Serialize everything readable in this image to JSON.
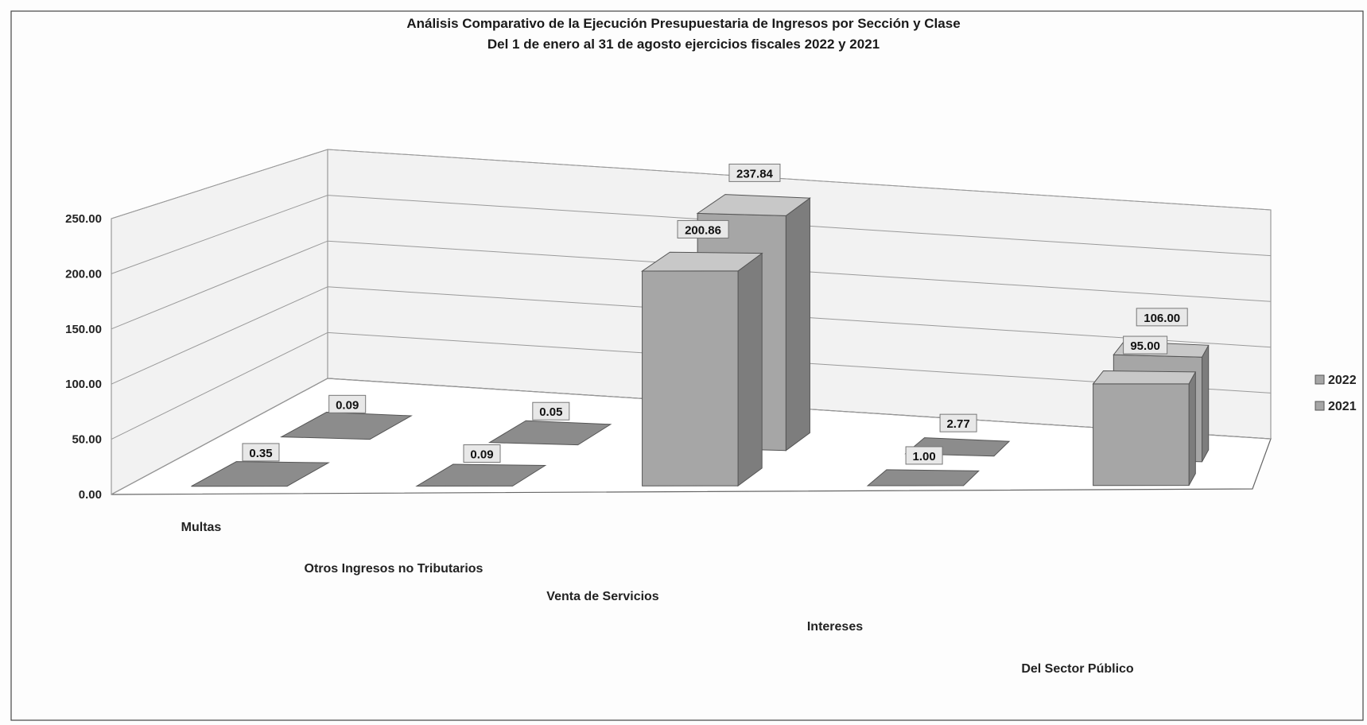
{
  "chart_data": {
    "type": "bar",
    "title": "Análisis Comparativo de la Ejecución Presupuestaria de Ingresos por Sección y Clase",
    "subtitle": "Del 1 de enero al 31 de agosto ejercicios fiscales 2022 y 2021",
    "categories": [
      "Multas",
      "Otros Ingresos no Tributarios",
      "Venta de Servicios",
      "Intereses",
      "Del Sector Público"
    ],
    "series": [
      {
        "name": "2022",
        "values": [
          0.09,
          0.05,
          237.84,
          2.77,
          106.0
        ]
      },
      {
        "name": "2021",
        "values": [
          0.35,
          0.09,
          200.86,
          1.0,
          95.0
        ]
      }
    ],
    "data_labels": {
      "2022": [
        "0.09",
        "0.05",
        "237.84",
        "2.77",
        "106.00"
      ],
      "2021": [
        "0.35",
        "0.09",
        "200.86",
        "1.00",
        "95.00"
      ]
    },
    "yticks": [
      "0.00",
      "50.00",
      "100.00",
      "150.00",
      "200.00",
      "250.00"
    ],
    "ylim": [
      0,
      250
    ],
    "xlabel": "",
    "ylabel": "",
    "grid": true,
    "legend_position": "right",
    "style": "3d-column",
    "colors": {
      "bar_front": "#a6a6a6",
      "bar_side": "#7d7d7d",
      "bar_top": "#c8c8c8",
      "grid": "#9a9a9a",
      "wall": "#f2f2f2"
    }
  }
}
